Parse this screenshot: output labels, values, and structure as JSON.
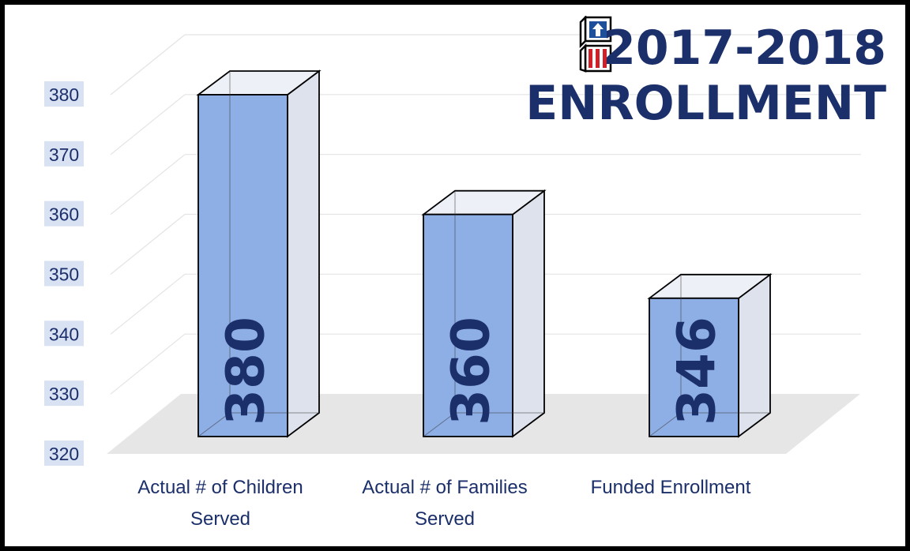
{
  "title_line_1": "2017-2018",
  "title_line_2": "ENROLLMENT",
  "colors": {
    "bar_front": "#8eaee6",
    "bar_side": "#dde2ec",
    "bar_top": "#edf0f6",
    "floor": "#e6e6e6",
    "axis_text": "#1b2f6b",
    "tick_bg": "#d9e2f3",
    "grid": "#e4e4e4"
  },
  "chart_data": {
    "type": "bar",
    "categories": [
      [
        "Actual # of Children",
        "Served"
      ],
      [
        "Actual # of Families",
        "Served"
      ],
      [
        "Funded Enrollment"
      ]
    ],
    "values": [
      380,
      360,
      346
    ],
    "data_labels": [
      "380",
      "360",
      "346"
    ],
    "ylim": [
      320,
      380
    ],
    "yticks": [
      "320",
      "330",
      "340",
      "350",
      "360",
      "370",
      "380"
    ],
    "grid": true,
    "legend": "none"
  }
}
